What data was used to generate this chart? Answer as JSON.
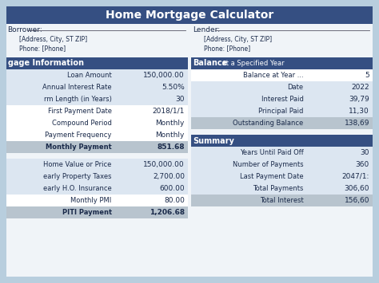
{
  "title": "Home Mortgage Calculator",
  "bg_color": "#b8cede",
  "header_color": "#354f82",
  "header_text_color": "#ffffff",
  "section_header_color": "#354f82",
  "row_light": "#dce6f1",
  "row_white": "#ffffff",
  "row_gray": "#b8c4ce",
  "card_color": "#f0f4f8",
  "text_color": "#1a2a4a",
  "borrower_label": "Borrower:",
  "borrower_address": "[Address, City, ST ZIP]",
  "borrower_phone": "Phone: [Phone]",
  "lender_label": "Lender:",
  "lender_address": "[Address, City, ST ZIP]",
  "lender_phone": "Phone: [Phone]",
  "left_section_title": "gage Information",
  "left_rows": [
    [
      "Loan Amount",
      "150,000.00",
      "light"
    ],
    [
      "Annual Interest Rate",
      "5.50%",
      "light"
    ],
    [
      "rm Length (in Years)",
      "30",
      "light"
    ],
    [
      "First Payment Date",
      "2018/1/1",
      "white"
    ],
    [
      "Compound Period",
      "Monthly",
      "white"
    ],
    [
      "Payment Frequency",
      "Monthly",
      "white"
    ],
    [
      "Monthly Payment",
      "851.68",
      "gray"
    ]
  ],
  "left_rows2": [
    [
      "Home Value or Price",
      "150,000.00",
      "light"
    ],
    [
      "early Property Taxes",
      "2,700.00",
      "light"
    ],
    [
      "early H.O. Insurance",
      "600.00",
      "light"
    ],
    [
      "Monthly PMI",
      "80.00",
      "white"
    ],
    [
      "PITI Payment",
      "1,206.68",
      "gray"
    ]
  ],
  "right_section_title1": "Balance",
  "right_section_subtitle1": " at a Specified Year",
  "right_rows1": [
    [
      "Balance at Year ...",
      "5",
      "white",
      true
    ],
    [
      "Date",
      "2022",
      "light",
      false
    ],
    [
      "Interest Paid",
      "39,79",
      "light",
      false
    ],
    [
      "Principal Paid",
      "11,30",
      "light",
      false
    ],
    [
      "Outstanding Balance",
      "138,69",
      "gray",
      false
    ]
  ],
  "right_section_title2": "Summary",
  "right_rows2": [
    [
      "Years Until Paid Off",
      "30",
      "light"
    ],
    [
      "Number of Payments",
      "360",
      "light"
    ],
    [
      "Last Payment Date",
      "2047/1:",
      "light"
    ],
    [
      "Total Payments",
      "306,60",
      "light"
    ],
    [
      "Total Interest",
      "156,60",
      "gray"
    ]
  ]
}
